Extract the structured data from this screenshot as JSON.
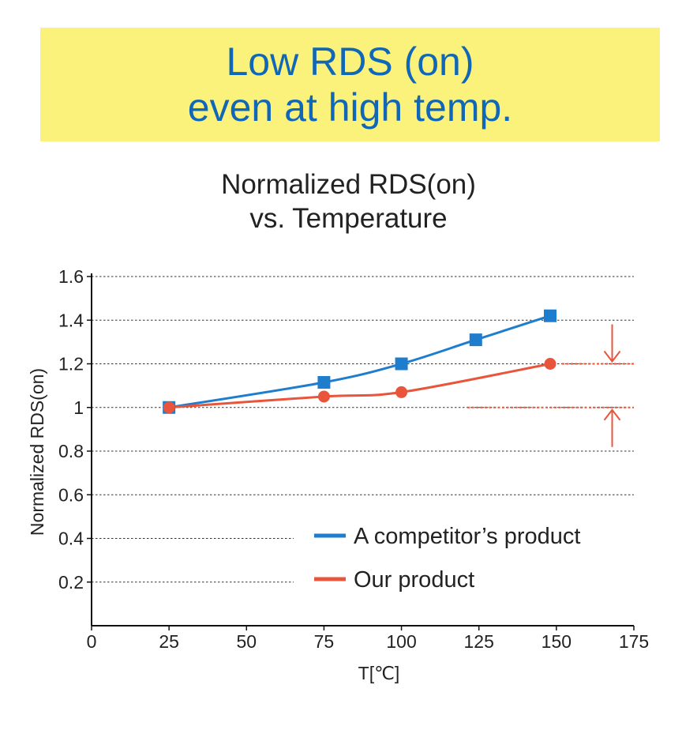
{
  "banner": {
    "line1": "Low RDS (on)",
    "line2": "even at high temp."
  },
  "colors": {
    "banner_bg": "#faf27a",
    "banner_text": "#1167b7",
    "competitor": "#1e7dcc",
    "ours": "#e8553b",
    "grid": "#333333"
  },
  "chart_data": {
    "type": "line",
    "title": "Normalized RDS(on)\nvs. Temperature",
    "title_lines": [
      "Normalized RDS(on)",
      "vs. Temperature"
    ],
    "xlabel": "T[℃]",
    "ylabel": "Normalized RDS(on)",
    "xlim": [
      0,
      175
    ],
    "ylim": [
      0,
      1.6
    ],
    "xticks": [
      "0",
      "25",
      "50",
      "75",
      "100",
      "125",
      "150",
      "175"
    ],
    "yticks": [
      "0.2",
      "0.4",
      "0.6",
      "0.8",
      "1",
      "1.2",
      "1.4",
      "1.6"
    ],
    "grid": true,
    "legend_position": "bottom-right",
    "series": [
      {
        "name": "A competitor’s product",
        "marker": "square",
        "x": [
          25,
          75,
          100,
          124,
          148
        ],
        "y": [
          1.0,
          1.115,
          1.2,
          1.31,
          1.42
        ]
      },
      {
        "name": "Our product",
        "marker": "circle",
        "x": [
          25,
          75,
          100,
          148
        ],
        "y": [
          1.0,
          1.05,
          1.07,
          1.2
        ]
      }
    ],
    "annotations": [
      {
        "type": "arrow-down",
        "x": 168,
        "y": 1.2
      },
      {
        "type": "arrow-up",
        "x": 168,
        "y": 1.0
      }
    ]
  }
}
